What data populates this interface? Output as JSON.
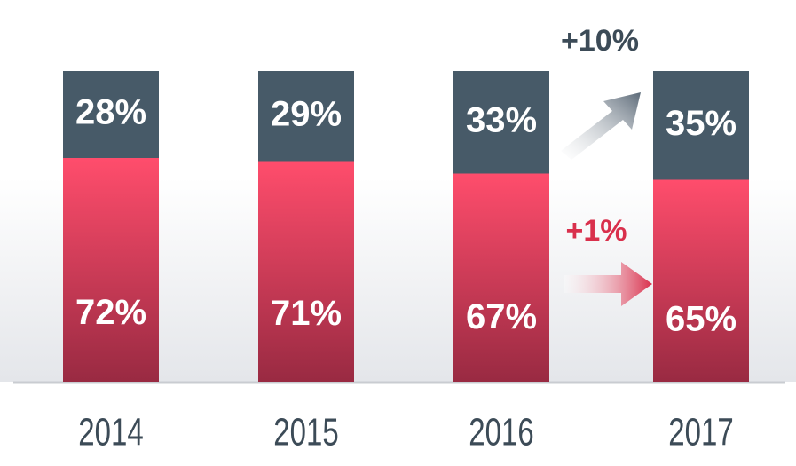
{
  "chart_data": {
    "type": "stacked_bar",
    "categories": [
      "2014",
      "2015",
      "2016",
      "2017"
    ],
    "series": [
      {
        "color": "#e8445f",
        "values": [
          72,
          71,
          67,
          65
        ],
        "value_labels": [
          "72%",
          "71%",
          "67%",
          "65%"
        ]
      },
      {
        "color": "#475a68",
        "values": [
          28,
          29,
          33,
          35
        ],
        "value_labels": [
          "28%",
          "29%",
          "33%",
          "35%"
        ]
      }
    ],
    "annotations": [
      "+10%",
      "+1%"
    ]
  }
}
